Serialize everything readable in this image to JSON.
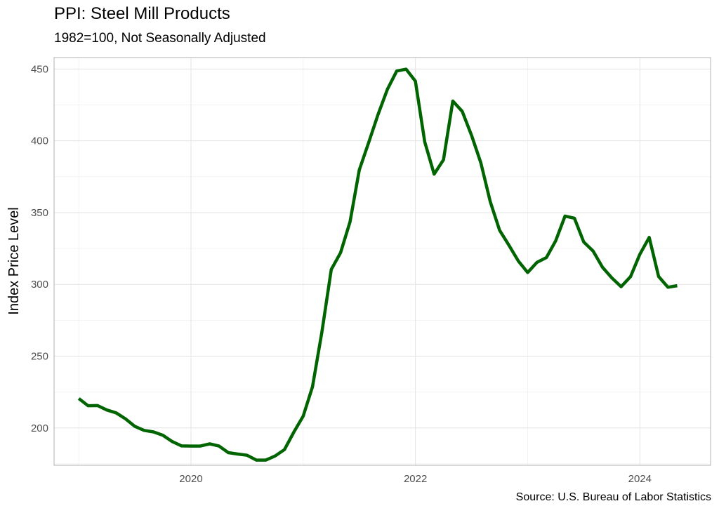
{
  "chart_data": {
    "type": "line",
    "title": "PPI: Steel Mill Products",
    "subtitle": "1982=100, Not Seasonally Adjusted",
    "caption": "Source: U.S. Bureau of Labor Statistics",
    "xlabel": "",
    "ylabel": "Index Price Level",
    "xlim": [
      2018.78,
      2024.63
    ],
    "ylim": [
      174,
      458
    ],
    "x_ticks": [
      2020,
      2022,
      2024
    ],
    "x_tick_labels": [
      "2020",
      "2022",
      "2024"
    ],
    "y_ticks": [
      200,
      250,
      300,
      350,
      400,
      450
    ],
    "y_tick_labels": [
      "200",
      "250",
      "300",
      "350",
      "400",
      "450"
    ],
    "grid": true,
    "line_color": "#006400",
    "series": [
      {
        "name": "PPI Steel Mill Products",
        "x": [
          2019.0,
          2019.083,
          2019.167,
          2019.25,
          2019.333,
          2019.417,
          2019.5,
          2019.583,
          2019.667,
          2019.75,
          2019.833,
          2019.917,
          2020.0,
          2020.083,
          2020.167,
          2020.25,
          2020.333,
          2020.417,
          2020.5,
          2020.583,
          2020.667,
          2020.75,
          2020.833,
          2020.917,
          2021.0,
          2021.083,
          2021.167,
          2021.25,
          2021.333,
          2021.417,
          2021.5,
          2021.583,
          2021.667,
          2021.75,
          2021.833,
          2021.917,
          2022.0,
          2022.083,
          2022.167,
          2022.25,
          2022.333,
          2022.417,
          2022.5,
          2022.583,
          2022.667,
          2022.75,
          2022.833,
          2022.917,
          2023.0,
          2023.083,
          2023.167,
          2023.25,
          2023.333,
          2023.417,
          2023.5,
          2023.583,
          2023.667,
          2023.75,
          2023.833,
          2023.917,
          2024.0,
          2024.083,
          2024.167,
          2024.25,
          2024.333
        ],
        "values": [
          220.5,
          215.5,
          215.6,
          212.5,
          210.5,
          206.3,
          201.1,
          198.3,
          197.2,
          194.9,
          190.5,
          187.5,
          187.4,
          187.4,
          188.9,
          187.4,
          182.8,
          181.8,
          181.0,
          177.6,
          177.6,
          180.5,
          184.9,
          197.2,
          208.2,
          228.8,
          267.0,
          310.4,
          322.0,
          343.5,
          379.7,
          398.7,
          418.3,
          435.8,
          448.6,
          449.9,
          441.6,
          399.3,
          376.8,
          386.8,
          427.7,
          420.5,
          403.8,
          384.7,
          357.5,
          337.7,
          327.3,
          316.3,
          308.3,
          315.3,
          318.7,
          330.3,
          347.6,
          346.1,
          329.5,
          323.2,
          311.9,
          304.5,
          298.4,
          305.4,
          321.0,
          332.7,
          305.5,
          298.0,
          299.1
        ]
      }
    ]
  }
}
